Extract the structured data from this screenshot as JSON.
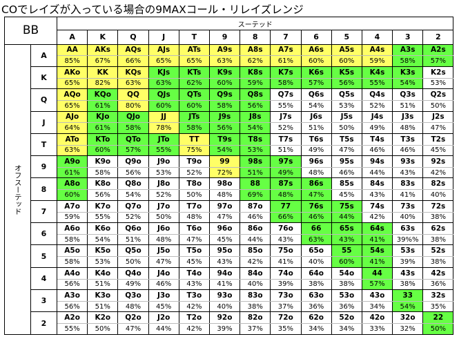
{
  "title": "COでレイズが入っている場合の9MAXコール・リレイズレンジ",
  "corner_label": "BB",
  "suited_label": "スーテッド",
  "offsuit_label": "オフスーテッド",
  "ranks": [
    "A",
    "K",
    "Q",
    "J",
    "T",
    "9",
    "8",
    "7",
    "6",
    "5",
    "4",
    "3",
    "2"
  ],
  "colors": {
    "yellow": "#ffff66",
    "green": "#66ff44",
    "white": "#ffffff"
  },
  "rows": [
    {
      "cells": [
        {
          "hand": "AA",
          "pct": "85%",
          "color": "yellow"
        },
        {
          "hand": "AKs",
          "pct": "67%",
          "color": "yellow"
        },
        {
          "hand": "AQs",
          "pct": "66%",
          "color": "yellow"
        },
        {
          "hand": "AJs",
          "pct": "65%",
          "color": "yellow"
        },
        {
          "hand": "ATs",
          "pct": "65%",
          "color": "yellow"
        },
        {
          "hand": "A9s",
          "pct": "63%",
          "color": "yellow"
        },
        {
          "hand": "A8s",
          "pct": "62%",
          "color": "yellow"
        },
        {
          "hand": "A7s",
          "pct": "61%",
          "color": "yellow"
        },
        {
          "hand": "A6s",
          "pct": "60%",
          "color": "yellow"
        },
        {
          "hand": "A5s",
          "pct": "60%",
          "color": "yellow"
        },
        {
          "hand": "A4s",
          "pct": "59%",
          "color": "yellow"
        },
        {
          "hand": "A3s",
          "pct": "58%",
          "color": "green"
        },
        {
          "hand": "A2s",
          "pct": "57%",
          "color": "green"
        }
      ]
    },
    {
      "cells": [
        {
          "hand": "AKo",
          "pct": "65%",
          "color": "yellow"
        },
        {
          "hand": "KK",
          "pct": "82%",
          "color": "yellow"
        },
        {
          "hand": "KQs",
          "pct": "63%",
          "color": "yellow"
        },
        {
          "hand": "KJs",
          "pct": "63%",
          "color": "green"
        },
        {
          "hand": "KTs",
          "pct": "62%",
          "color": "green"
        },
        {
          "hand": "K9s",
          "pct": "60%",
          "color": "green"
        },
        {
          "hand": "K8s",
          "pct": "59%",
          "color": "green"
        },
        {
          "hand": "K7s",
          "pct": "58%",
          "color": "green"
        },
        {
          "hand": "K6s",
          "pct": "57%",
          "color": "green"
        },
        {
          "hand": "K5s",
          "pct": "56%",
          "color": "green"
        },
        {
          "hand": "K4s",
          "pct": "55%",
          "color": "green"
        },
        {
          "hand": "K3s",
          "pct": "54%",
          "color": "green"
        },
        {
          "hand": "K2s",
          "pct": "53%",
          "color": "white"
        }
      ]
    },
    {
      "cells": [
        {
          "hand": "AQo",
          "pct": "65%",
          "color": "yellow"
        },
        {
          "hand": "KQo",
          "pct": "61%",
          "color": "green"
        },
        {
          "hand": "QQ",
          "pct": "80%",
          "color": "yellow"
        },
        {
          "hand": "QJs",
          "pct": "60%",
          "color": "green"
        },
        {
          "hand": "QTs",
          "pct": "60%",
          "color": "green"
        },
        {
          "hand": "Q9s",
          "pct": "58%",
          "color": "green"
        },
        {
          "hand": "Q8s",
          "pct": "56%",
          "color": "green"
        },
        {
          "hand": "Q7s",
          "pct": "55%",
          "color": "white"
        },
        {
          "hand": "Q6s",
          "pct": "54%",
          "color": "white"
        },
        {
          "hand": "Q5s",
          "pct": "53%",
          "color": "white"
        },
        {
          "hand": "Q4s",
          "pct": "52%",
          "color": "white"
        },
        {
          "hand": "Q3s",
          "pct": "51%",
          "color": "white"
        },
        {
          "hand": "Q2s",
          "pct": "50%",
          "color": "white"
        }
      ]
    },
    {
      "cells": [
        {
          "hand": "AJo",
          "pct": "64%",
          "color": "yellow"
        },
        {
          "hand": "KJo",
          "pct": "61%",
          "color": "green"
        },
        {
          "hand": "QJo",
          "pct": "58%",
          "color": "green"
        },
        {
          "hand": "JJ",
          "pct": "78%",
          "color": "yellow"
        },
        {
          "hand": "JTs",
          "pct": "58%",
          "color": "green"
        },
        {
          "hand": "J9s",
          "pct": "56%",
          "color": "green"
        },
        {
          "hand": "J8s",
          "pct": "54%",
          "color": "green"
        },
        {
          "hand": "J7s",
          "pct": "52%",
          "color": "white"
        },
        {
          "hand": "J6s",
          "pct": "51%",
          "color": "white"
        },
        {
          "hand": "J5s",
          "pct": "50%",
          "color": "white"
        },
        {
          "hand": "J4s",
          "pct": "49%",
          "color": "white"
        },
        {
          "hand": "J3s",
          "pct": "48%",
          "color": "white"
        },
        {
          "hand": "J2s",
          "pct": "47%",
          "color": "white"
        }
      ]
    },
    {
      "cells": [
        {
          "hand": "ATo",
          "pct": "63%",
          "color": "yellow"
        },
        {
          "hand": "KTo",
          "pct": "60%",
          "color": "green"
        },
        {
          "hand": "QTo",
          "pct": "57%",
          "color": "green"
        },
        {
          "hand": "JTo",
          "pct": "55%",
          "color": "green"
        },
        {
          "hand": "TT",
          "pct": "75%",
          "color": "yellow"
        },
        {
          "hand": "T9s",
          "pct": "54%",
          "color": "green"
        },
        {
          "hand": "T8s",
          "pct": "53%",
          "color": "green"
        },
        {
          "hand": "T7s",
          "pct": "51%",
          "color": "white"
        },
        {
          "hand": "T6s",
          "pct": "49%",
          "color": "white"
        },
        {
          "hand": "T5s",
          "pct": "47%",
          "color": "white"
        },
        {
          "hand": "T4s",
          "pct": "46%",
          "color": "white"
        },
        {
          "hand": "T3s",
          "pct": "46%",
          "color": "white"
        },
        {
          "hand": "T2s",
          "pct": "45%",
          "color": "white"
        }
      ]
    },
    {
      "cells": [
        {
          "hand": "A9o",
          "pct": "61%",
          "color": "green"
        },
        {
          "hand": "K9o",
          "pct": "58%",
          "color": "white"
        },
        {
          "hand": "Q9o",
          "pct": "56%",
          "color": "white"
        },
        {
          "hand": "J9o",
          "pct": "53%",
          "color": "white"
        },
        {
          "hand": "T9o",
          "pct": "52%",
          "color": "white"
        },
        {
          "hand": "99",
          "pct": "72%",
          "color": "yellow"
        },
        {
          "hand": "98s",
          "pct": "51%",
          "color": "green"
        },
        {
          "hand": "97s",
          "pct": "49%",
          "color": "green"
        },
        {
          "hand": "96s",
          "pct": "48%",
          "color": "white"
        },
        {
          "hand": "95s",
          "pct": "46%",
          "color": "white"
        },
        {
          "hand": "94s",
          "pct": "44%",
          "color": "white"
        },
        {
          "hand": "93s",
          "pct": "43%",
          "color": "white"
        },
        {
          "hand": "92s",
          "pct": "42%",
          "color": "white"
        }
      ]
    },
    {
      "cells": [
        {
          "hand": "A8o",
          "pct": "60%",
          "color": "green"
        },
        {
          "hand": "K8o",
          "pct": "56%",
          "color": "white"
        },
        {
          "hand": "Q8o",
          "pct": "54%",
          "color": "white"
        },
        {
          "hand": "J8o",
          "pct": "52%",
          "color": "white"
        },
        {
          "hand": "T8o",
          "pct": "50%",
          "color": "white"
        },
        {
          "hand": "98o",
          "pct": "48%",
          "color": "white"
        },
        {
          "hand": "88",
          "pct": "69%",
          "color": "green"
        },
        {
          "hand": "87s",
          "pct": "48%",
          "color": "green"
        },
        {
          "hand": "86s",
          "pct": "47%",
          "color": "green"
        },
        {
          "hand": "85s",
          "pct": "45%",
          "color": "white"
        },
        {
          "hand": "84s",
          "pct": "43%",
          "color": "white"
        },
        {
          "hand": "83s",
          "pct": "41%",
          "color": "white"
        },
        {
          "hand": "82s",
          "pct": "40%",
          "color": "white"
        }
      ]
    },
    {
      "cells": [
        {
          "hand": "A7o",
          "pct": "59%",
          "color": "white"
        },
        {
          "hand": "K7o",
          "pct": "55%",
          "color": "white"
        },
        {
          "hand": "Q7o",
          "pct": "52%",
          "color": "white"
        },
        {
          "hand": "J7o",
          "pct": "50%",
          "color": "white"
        },
        {
          "hand": "T7o",
          "pct": "48%",
          "color": "white"
        },
        {
          "hand": "97o",
          "pct": "47%",
          "color": "white"
        },
        {
          "hand": "87o",
          "pct": "46%",
          "color": "white"
        },
        {
          "hand": "77",
          "pct": "66%",
          "color": "green"
        },
        {
          "hand": "76s",
          "pct": "46%",
          "color": "green"
        },
        {
          "hand": "75s",
          "pct": "44%",
          "color": "green"
        },
        {
          "hand": "74s",
          "pct": "42%",
          "color": "white"
        },
        {
          "hand": "73s",
          "pct": "40%",
          "color": "white"
        },
        {
          "hand": "72s",
          "pct": "38%",
          "color": "white"
        }
      ]
    },
    {
      "cells": [
        {
          "hand": "A6o",
          "pct": "58%",
          "color": "white"
        },
        {
          "hand": "K6o",
          "pct": "54%",
          "color": "white"
        },
        {
          "hand": "Q6o",
          "pct": "51%",
          "color": "white"
        },
        {
          "hand": "J6o",
          "pct": "48%",
          "color": "white"
        },
        {
          "hand": "T6o",
          "pct": "47%",
          "color": "white"
        },
        {
          "hand": "96o",
          "pct": "45%",
          "color": "white"
        },
        {
          "hand": "86o",
          "pct": "44%",
          "color": "white"
        },
        {
          "hand": "76o",
          "pct": "43%",
          "color": "white"
        },
        {
          "hand": "66",
          "pct": "63%",
          "color": "green"
        },
        {
          "hand": "65s",
          "pct": "43%",
          "color": "green"
        },
        {
          "hand": "64s",
          "pct": "41%",
          "color": "green"
        },
        {
          "hand": "63s",
          "pct": "39%%",
          "color": "white"
        },
        {
          "hand": "62s",
          "pct": "38%",
          "color": "white"
        }
      ]
    },
    {
      "cells": [
        {
          "hand": "A5o",
          "pct": "58%",
          "color": "white"
        },
        {
          "hand": "K5o",
          "pct": "53%",
          "color": "white"
        },
        {
          "hand": "Q5o",
          "pct": "50%",
          "color": "white"
        },
        {
          "hand": "J5o",
          "pct": "47%",
          "color": "white"
        },
        {
          "hand": "T5o",
          "pct": "45%",
          "color": "white"
        },
        {
          "hand": "95o",
          "pct": "43%",
          "color": "white"
        },
        {
          "hand": "85o",
          "pct": "42%",
          "color": "white"
        },
        {
          "hand": "75o",
          "pct": "41%",
          "color": "white"
        },
        {
          "hand": "65o",
          "pct": "40%",
          "color": "white"
        },
        {
          "hand": "55",
          "pct": "60%",
          "color": "green"
        },
        {
          "hand": "54s",
          "pct": "41%",
          "color": "green"
        },
        {
          "hand": "53s",
          "pct": "39%",
          "color": "white"
        },
        {
          "hand": "52s",
          "pct": "38%",
          "color": "white"
        }
      ]
    },
    {
      "cells": [
        {
          "hand": "A4o",
          "pct": "56%",
          "color": "white"
        },
        {
          "hand": "K4o",
          "pct": "51%",
          "color": "white"
        },
        {
          "hand": "Q4o",
          "pct": "49%",
          "color": "white"
        },
        {
          "hand": "J4o",
          "pct": "46%",
          "color": "white"
        },
        {
          "hand": "T4o",
          "pct": "43%",
          "color": "white"
        },
        {
          "hand": "94o",
          "pct": "41%",
          "color": "white"
        },
        {
          "hand": "84o",
          "pct": "40%",
          "color": "white"
        },
        {
          "hand": "74o",
          "pct": "39%",
          "color": "white"
        },
        {
          "hand": "64o",
          "pct": "38%",
          "color": "white"
        },
        {
          "hand": "54o",
          "pct": "38%",
          "color": "white"
        },
        {
          "hand": "44",
          "pct": "57%",
          "color": "green"
        },
        {
          "hand": "43s",
          "pct": "38%",
          "color": "white"
        },
        {
          "hand": "42s",
          "pct": "36%",
          "color": "white"
        }
      ]
    },
    {
      "cells": [
        {
          "hand": "A3o",
          "pct": "56%",
          "color": "white"
        },
        {
          "hand": "K3o",
          "pct": "51%",
          "color": "white"
        },
        {
          "hand": "Q3o",
          "pct": "48%",
          "color": "white"
        },
        {
          "hand": "J3o",
          "pct": "45%",
          "color": "white"
        },
        {
          "hand": "T3o",
          "pct": "42%",
          "color": "white"
        },
        {
          "hand": "93o",
          "pct": "40%",
          "color": "white"
        },
        {
          "hand": "83o",
          "pct": "38%",
          "color": "white"
        },
        {
          "hand": "73o",
          "pct": "37%",
          "color": "white"
        },
        {
          "hand": "63o",
          "pct": "36%",
          "color": "white"
        },
        {
          "hand": "53o",
          "pct": "36%",
          "color": "white"
        },
        {
          "hand": "43o",
          "pct": "34%",
          "color": "white"
        },
        {
          "hand": "33",
          "pct": "54%",
          "color": "green"
        },
        {
          "hand": "32s",
          "pct": "35%",
          "color": "white"
        }
      ]
    },
    {
      "cells": [
        {
          "hand": "A2o",
          "pct": "55%",
          "color": "white"
        },
        {
          "hand": "K2o",
          "pct": "50%",
          "color": "white"
        },
        {
          "hand": "Q2o",
          "pct": "47%",
          "color": "white"
        },
        {
          "hand": "J2o",
          "pct": "44%",
          "color": "white"
        },
        {
          "hand": "T2o",
          "pct": "42%",
          "color": "white"
        },
        {
          "hand": "92o",
          "pct": "39%",
          "color": "white"
        },
        {
          "hand": "82o",
          "pct": "37%",
          "color": "white"
        },
        {
          "hand": "72o",
          "pct": "35%",
          "color": "white"
        },
        {
          "hand": "62o",
          "pct": "34%",
          "color": "white"
        },
        {
          "hand": "52o",
          "pct": "34%",
          "color": "white"
        },
        {
          "hand": "42o",
          "pct": "33%",
          "color": "white"
        },
        {
          "hand": "32o",
          "pct": "32%",
          "color": "white"
        },
        {
          "hand": "22",
          "pct": "50%",
          "color": "green"
        }
      ]
    }
  ]
}
